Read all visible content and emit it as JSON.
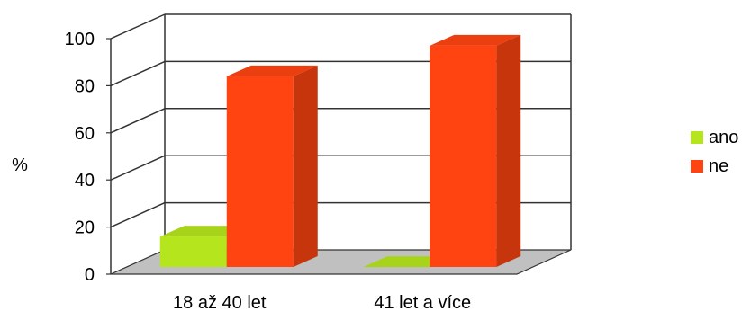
{
  "chart_data": {
    "type": "bar",
    "three_d": true,
    "categories": [
      "18 až 40 let",
      "41 let a více"
    ],
    "series": [
      {
        "name": "ano",
        "values": [
          16,
          3
        ],
        "color": "#b5e61d"
      },
      {
        "name": "ne",
        "values": [
          84,
          97
        ],
        "color": "#ff4411"
      }
    ],
    "ylabel": "%",
    "xlabel": "",
    "ylim": [
      0,
      100
    ],
    "yticks": [
      0,
      20,
      40,
      60,
      80,
      100
    ],
    "grid": true,
    "legend_position": "right",
    "floor_color": "#c0c0c0"
  }
}
